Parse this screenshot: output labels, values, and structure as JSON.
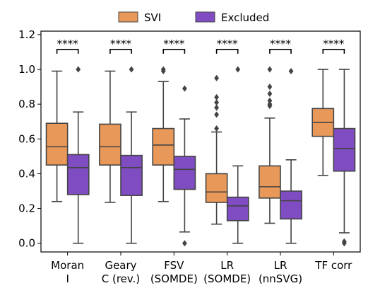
{
  "chart_data": {
    "type": "box",
    "categories": [
      [
        "Moran",
        "I"
      ],
      [
        "Geary",
        "C (rev.)"
      ],
      [
        "FSV",
        "(SOMDE)"
      ],
      [
        "LR",
        "(SOMDE)"
      ],
      [
        "LR",
        "(nnSVG)"
      ],
      [
        "TF corr"
      ]
    ],
    "series": [
      {
        "name": "SVI",
        "color": "#e8995a",
        "boxes": [
          {
            "whisker_low": 0.24,
            "q1": 0.45,
            "median": 0.555,
            "q3": 0.69,
            "whisker_high": 0.99,
            "outliers": []
          },
          {
            "whisker_low": 0.235,
            "q1": 0.45,
            "median": 0.555,
            "q3": 0.685,
            "whisker_high": 0.99,
            "outliers": []
          },
          {
            "whisker_low": 0.24,
            "q1": 0.45,
            "median": 0.565,
            "q3": 0.66,
            "whisker_high": 0.93,
            "outliers": [
              0.99,
              1.0
            ]
          },
          {
            "whisker_low": 0.11,
            "q1": 0.235,
            "median": 0.295,
            "q3": 0.4,
            "whisker_high": 0.64,
            "outliers": [
              0.66,
              0.74,
              0.78,
              0.81,
              0.84,
              0.95
            ]
          },
          {
            "whisker_low": 0.115,
            "q1": 0.26,
            "median": 0.325,
            "q3": 0.445,
            "whisker_high": 0.72,
            "outliers": [
              0.79,
              0.8,
              0.82,
              0.86,
              0.9,
              1.0
            ]
          },
          {
            "whisker_low": 0.39,
            "q1": 0.615,
            "median": 0.695,
            "q3": 0.775,
            "whisker_high": 1.0,
            "outliers": []
          }
        ]
      },
      {
        "name": "Excluded",
        "color": "#7f4cc2",
        "boxes": [
          {
            "whisker_low": 0.0,
            "q1": 0.28,
            "median": 0.435,
            "q3": 0.51,
            "whisker_high": 0.755,
            "outliers": [
              1.0
            ]
          },
          {
            "whisker_low": 0.0,
            "q1": 0.275,
            "median": 0.435,
            "q3": 0.505,
            "whisker_high": 0.755,
            "outliers": [
              1.0
            ]
          },
          {
            "whisker_low": 0.065,
            "q1": 0.31,
            "median": 0.425,
            "q3": 0.5,
            "whisker_high": 0.715,
            "outliers": [
              0.0,
              0.89
            ]
          },
          {
            "whisker_low": 0.0,
            "q1": 0.13,
            "median": 0.215,
            "q3": 0.265,
            "whisker_high": 0.445,
            "outliers": [
              1.0
            ]
          },
          {
            "whisker_low": 0.0,
            "q1": 0.14,
            "median": 0.245,
            "q3": 0.3,
            "whisker_high": 0.48,
            "outliers": [
              0.99
            ]
          },
          {
            "whisker_low": 0.06,
            "q1": 0.415,
            "median": 0.545,
            "q3": 0.66,
            "whisker_high": 1.0,
            "outliers": [
              0.0,
              0.01
            ]
          }
        ]
      }
    ],
    "significance": [
      "****",
      "****",
      "****",
      "****",
      "****",
      "****"
    ],
    "yticks": [
      0.0,
      0.2,
      0.4,
      0.6,
      0.8,
      1.0,
      1.2
    ],
    "ylim": [
      -0.05,
      1.22
    ],
    "legend_placement": "top-center",
    "title": "",
    "xlabel": "",
    "ylabel": "",
    "grid": false
  }
}
